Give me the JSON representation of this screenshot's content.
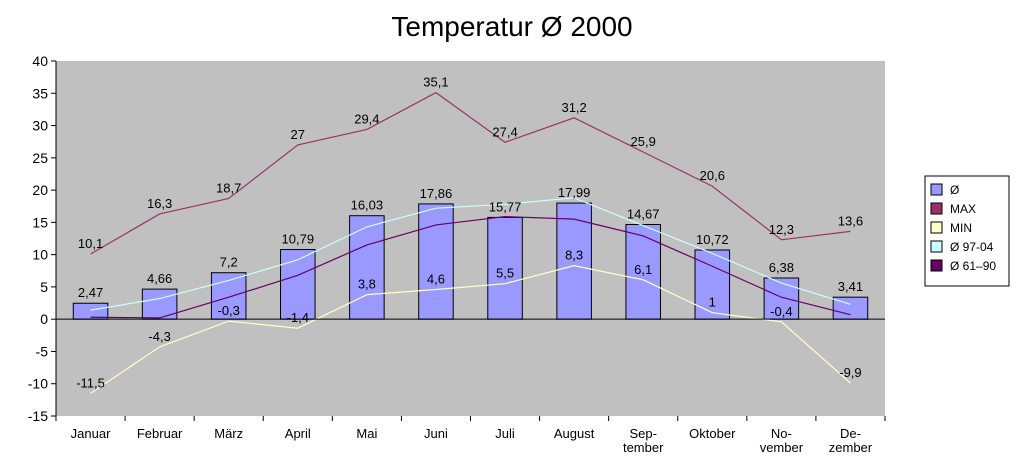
{
  "chart_data": {
    "type": "bar",
    "title": "Temperatur Ø 2000",
    "categories": [
      [
        "Januar"
      ],
      [
        "Februar"
      ],
      [
        "März"
      ],
      [
        "April"
      ],
      [
        "Mai"
      ],
      [
        "Juni"
      ],
      [
        "Juli"
      ],
      [
        "August"
      ],
      [
        "Sep-",
        "tember"
      ],
      [
        "Oktober"
      ],
      [
        "No-",
        "vember"
      ],
      [
        "De-",
        "zember"
      ]
    ],
    "ylim": [
      -15,
      40
    ],
    "yticks": [
      40,
      35,
      30,
      25,
      20,
      15,
      10,
      5,
      0,
      -5,
      -10,
      -15
    ],
    "grid": false,
    "legend_position": "right",
    "colors": {
      "plot_background": "#c0c0c0",
      "bar_fill": "#9999ff",
      "bar_stroke": "#000000"
    },
    "series": [
      {
        "name": "Ø",
        "kind": "bar",
        "color": "#9999ff",
        "show_labels": true,
        "values": [
          2.47,
          4.66,
          7.2,
          10.79,
          16.03,
          17.86,
          15.77,
          17.99,
          14.67,
          10.72,
          6.38,
          3.41
        ],
        "labels": [
          "2,47",
          "4,66",
          "7,2",
          "10,79",
          "16,03",
          "17,86",
          "15,77",
          "17,99",
          "14,67",
          "10,72",
          "6,38",
          "3,41"
        ]
      },
      {
        "name": "MAX",
        "kind": "line",
        "color": "#993366",
        "show_labels": true,
        "values": [
          10.1,
          16.3,
          18.7,
          27,
          29.4,
          35.1,
          27.4,
          31.2,
          25.9,
          20.6,
          12.3,
          13.6
        ],
        "labels": [
          "10,1",
          "16,3",
          "18,7",
          "27",
          "29,4",
          "35,1",
          "27,4",
          "31,2",
          "25,9",
          "20,6",
          "12,3",
          "13,6"
        ]
      },
      {
        "name": "MIN",
        "kind": "line",
        "color": "#ffffcc",
        "show_labels": true,
        "values": [
          -11.5,
          -4.3,
          -0.3,
          -1.4,
          3.8,
          4.6,
          5.5,
          8.3,
          6.1,
          1,
          -0.4,
          -9.9
        ],
        "labels": [
          "-11,5",
          "-4,3",
          "-0,3",
          "-1,4",
          "3,8",
          "4,6",
          "5,5",
          "8,3",
          "6,1",
          "1",
          "-0,4",
          "-9,9"
        ]
      },
      {
        "name": "Ø 97-04",
        "kind": "line",
        "color": "#ccffff",
        "show_labels": false,
        "values": [
          1.4,
          3.2,
          6.0,
          9.2,
          14.3,
          17.2,
          17.8,
          18.8,
          14.5,
          10.2,
          5.6,
          2.3
        ]
      },
      {
        "name": "Ø 61–90",
        "kind": "line",
        "color": "#660066",
        "show_labels": false,
        "values": [
          0.3,
          0.2,
          3.4,
          6.8,
          11.5,
          14.6,
          15.9,
          15.5,
          12.9,
          8.2,
          3.4,
          0.7
        ]
      }
    ]
  }
}
